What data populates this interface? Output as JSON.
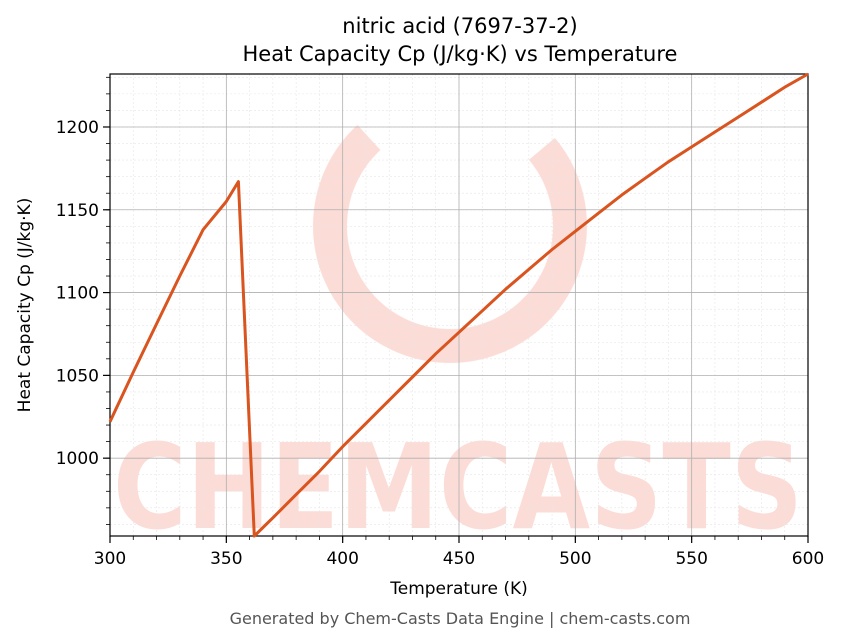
{
  "chart_data": {
    "type": "line",
    "title_line1": "nitric acid (7697-37-2)",
    "title_line2": "Heat Capacity Cp (J/kg·K) vs Temperature",
    "xlabel": "Temperature (K)",
    "ylabel": "Heat Capacity Cp (J/kg·K)",
    "xlim": [
      300,
      600
    ],
    "ylim": [
      953,
      1232
    ],
    "x_ticks": [
      300,
      350,
      400,
      450,
      500,
      550,
      600
    ],
    "y_ticks": [
      1000,
      1050,
      1100,
      1150,
      1200
    ],
    "grid": true,
    "line_color": "#d9541e",
    "series": [
      {
        "x": [
          300,
          310,
          320,
          330,
          340,
          350,
          355.2,
          362,
          370,
          380,
          390,
          400,
          410,
          420,
          430,
          440,
          450,
          460,
          470,
          480,
          490,
          500,
          510,
          520,
          530,
          540,
          550,
          560,
          570,
          580,
          590,
          600
        ],
        "values": [
          1022,
          1052,
          1081,
          1110,
          1138,
          1155,
          1167,
          953,
          964,
          978,
          992,
          1007,
          1021,
          1035,
          1049,
          1063,
          1076,
          1089,
          1102,
          1114,
          1126,
          1137,
          1148,
          1159,
          1169,
          1179,
          1188,
          1197,
          1206,
          1215,
          1224,
          1232
        ]
      }
    ]
  },
  "watermark": {
    "text": "CHEMCASTS",
    "color": "#fcd9d2"
  },
  "footer": "Generated by Chem-Casts Data Engine | chem-casts.com"
}
